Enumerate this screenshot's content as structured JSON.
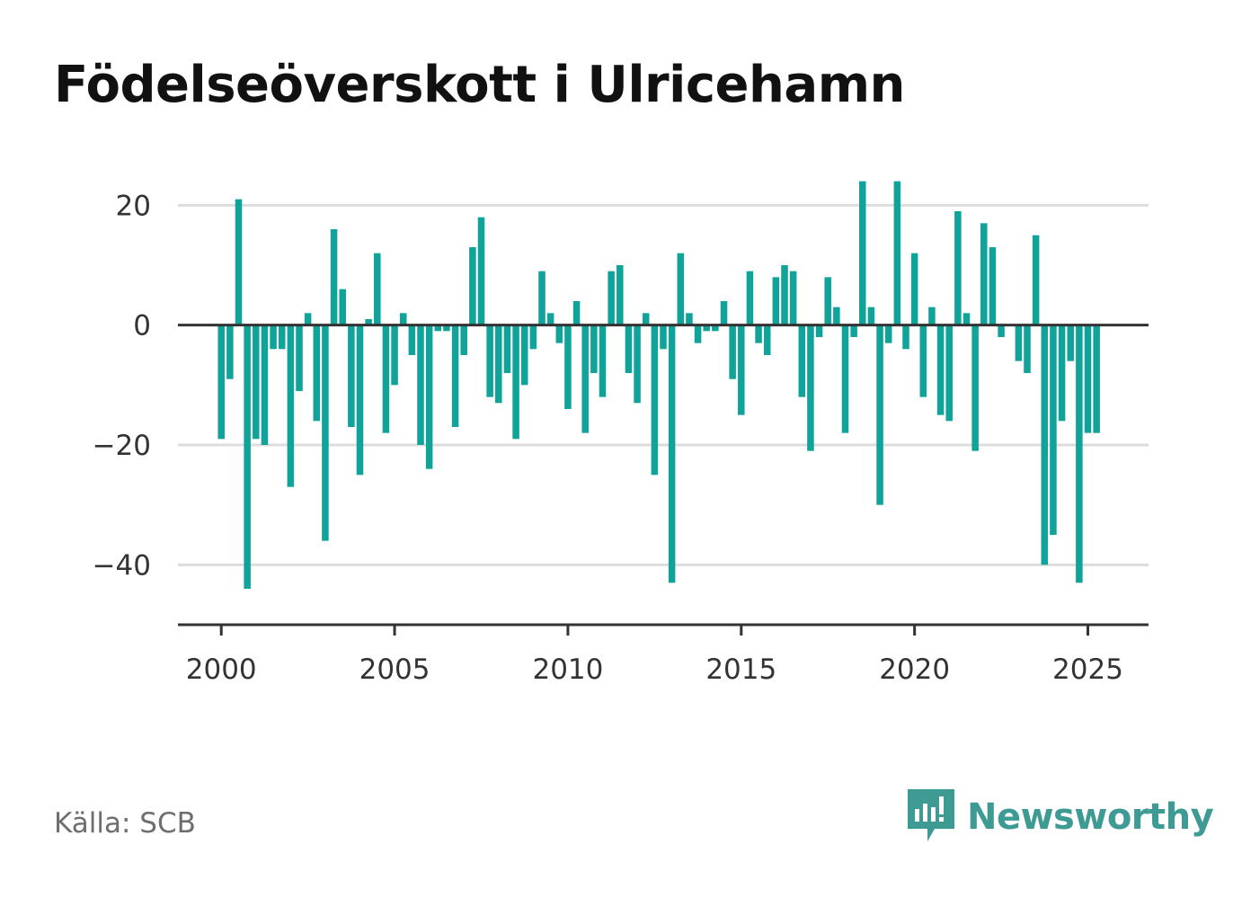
{
  "title": "Födelseöverskott i Ulricehamn",
  "source": "Källa: SCB",
  "brand": {
    "name": "Newsworthy",
    "icon": "newsworthy-logo-icon",
    "color": "#3d9b94"
  },
  "colors": {
    "bar": "#0fa39a",
    "grid": "#dddddd",
    "baseline": "#333333",
    "axis": "#333333"
  },
  "chart_data": {
    "type": "bar",
    "title": "Födelseöverskott i Ulricehamn",
    "xlabel": "",
    "ylabel": "",
    "x_start": 2000,
    "x_step": 0.25,
    "xlim": [
      1998.75,
      2026.75
    ],
    "ylim": [
      -50,
      28
    ],
    "xticks": [
      2000,
      2005,
      2010,
      2015,
      2020,
      2025
    ],
    "xtick_labels": [
      "2000",
      "2005",
      "2010",
      "2015",
      "2020",
      "2025"
    ],
    "yticks": [
      20,
      0,
      -20,
      -40
    ],
    "ytick_labels": [
      "20",
      "0",
      "−20",
      "−40"
    ],
    "grid": true,
    "legend": "none",
    "values": [
      -19,
      -9,
      21,
      -44,
      -19,
      -20,
      -4,
      -4,
      -27,
      -11,
      2,
      -16,
      -36,
      16,
      6,
      -17,
      -25,
      1,
      12,
      -18,
      -10,
      2,
      -5,
      -20,
      -24,
      -1,
      -1,
      -17,
      -5,
      13,
      18,
      -12,
      -13,
      -8,
      -19,
      -10,
      -4,
      9,
      2,
      -3,
      -14,
      4,
      -18,
      -8,
      -12,
      9,
      10,
      -8,
      -13,
      2,
      -25,
      -4,
      -43,
      12,
      2,
      -3,
      -1,
      -1,
      4,
      -9,
      -15,
      9,
      -3,
      -5,
      8,
      10,
      9,
      -12,
      -21,
      -2,
      8,
      3,
      -18,
      -2,
      24,
      3,
      -30,
      -3,
      24,
      -4,
      12,
      -12,
      3,
      -15,
      -16,
      19,
      2,
      -21,
      17,
      13,
      -2,
      0,
      -6,
      -8,
      15,
      -40,
      -35,
      -16,
      -6,
      -43,
      -18,
      -18
    ]
  }
}
